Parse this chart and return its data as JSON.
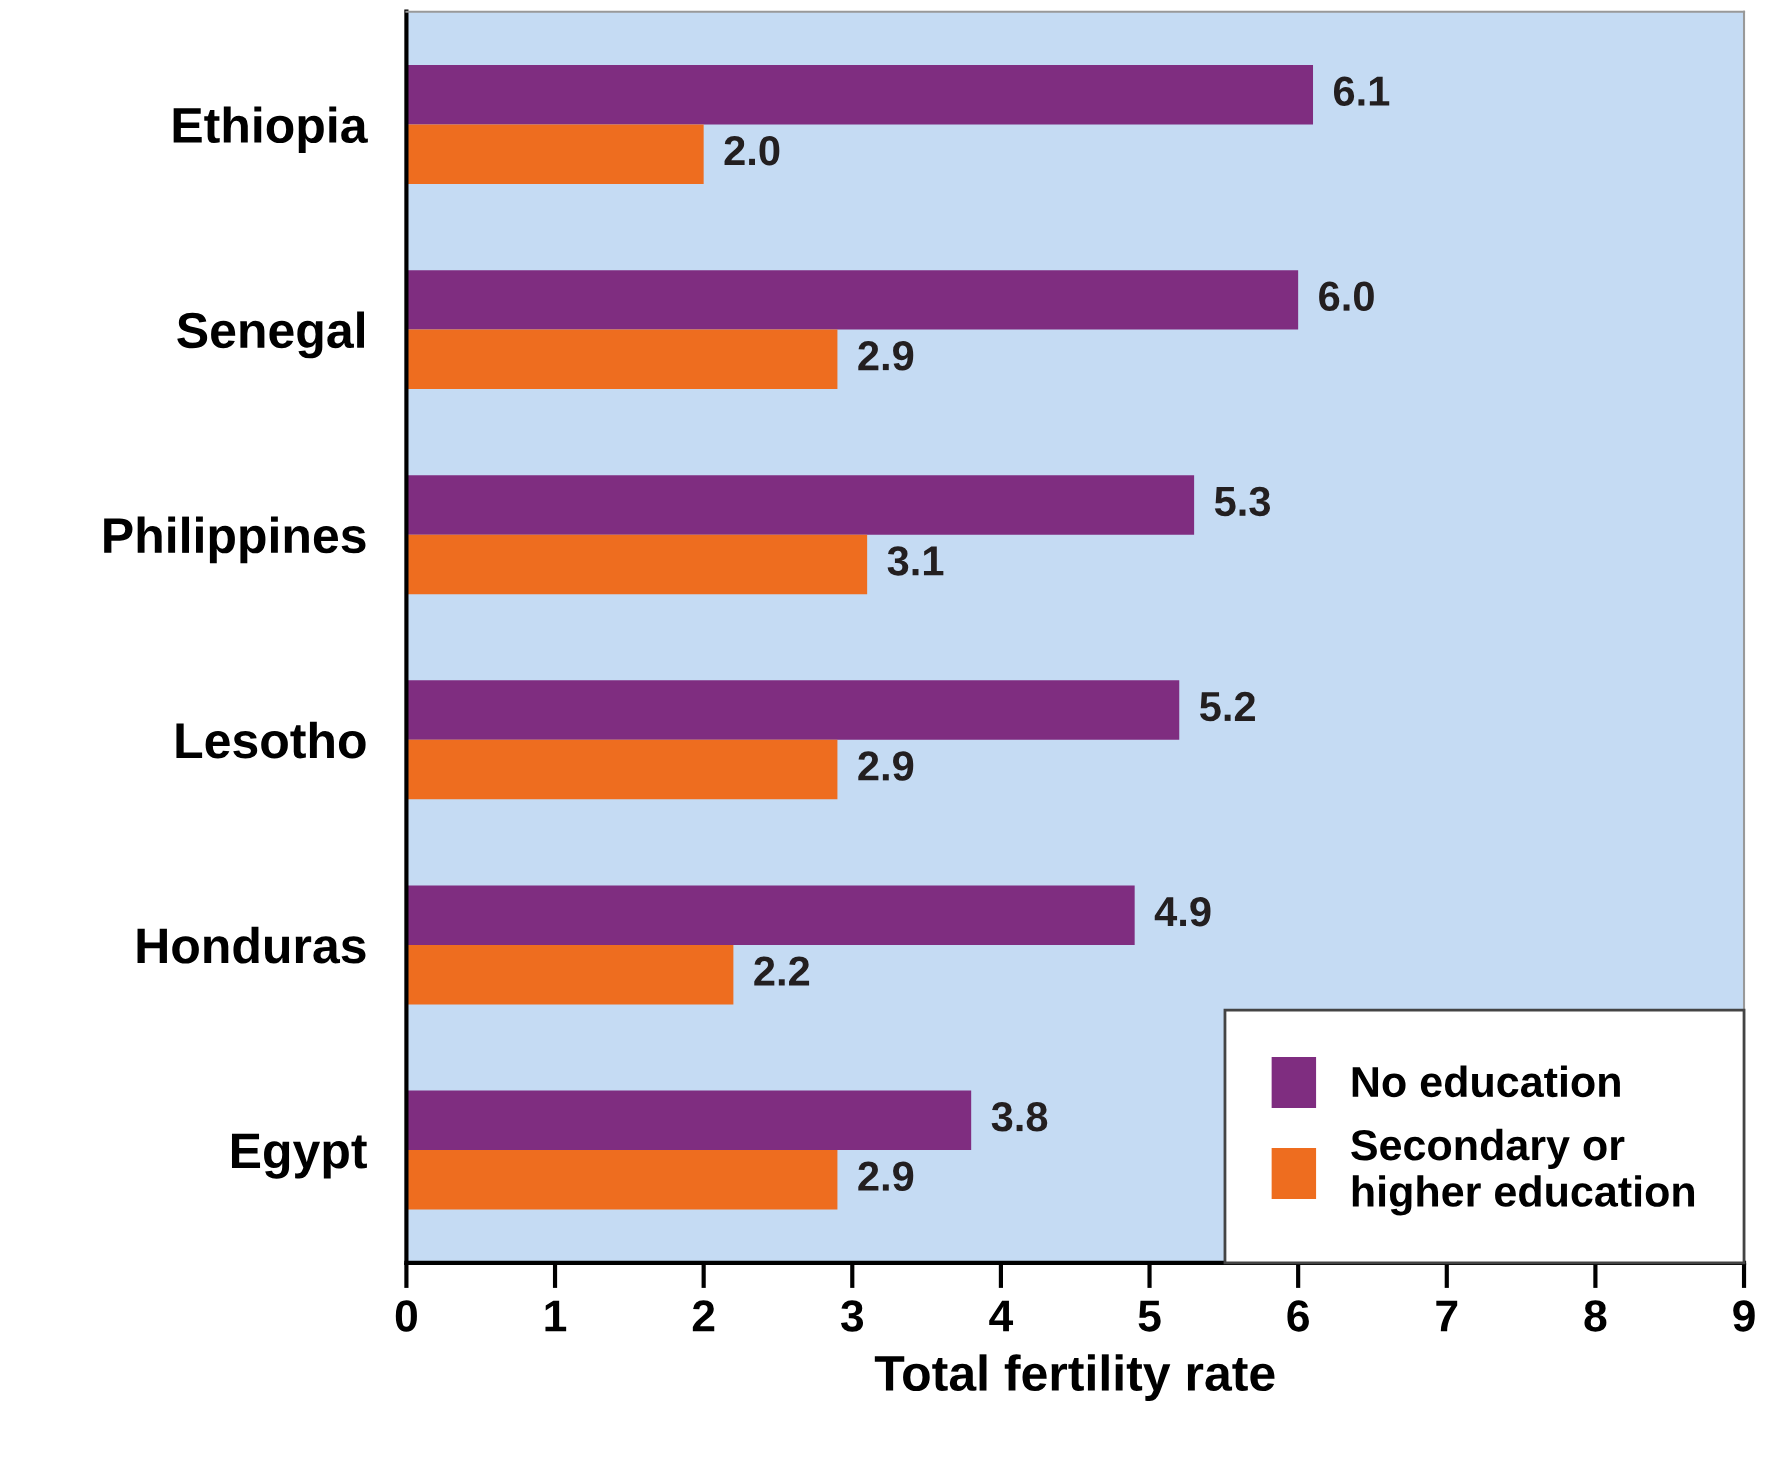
{
  "chart_data": {
    "type": "bar",
    "orientation": "horizontal",
    "xlabel": "Total fertility rate",
    "categories": [
      "Ethiopia",
      "Senegal",
      "Philippines",
      "Lesotho",
      "Honduras",
      "Egypt"
    ],
    "series": [
      {
        "name": "No education",
        "color": "#7f2d80",
        "values": [
          6.1,
          6.0,
          5.3,
          5.2,
          4.9,
          3.8
        ],
        "value_labels": [
          "6.1",
          "6.0",
          "5.3",
          "5.2",
          "4.9",
          "3.8"
        ]
      },
      {
        "name": "Secondary or\nhigher education",
        "color": "#ee6d1f",
        "values": [
          2.0,
          2.9,
          3.1,
          2.9,
          2.2,
          2.9
        ],
        "value_labels": [
          "2.0",
          "2.9",
          "3.1",
          "2.9",
          "2.2",
          "2.9"
        ]
      }
    ],
    "xlim": [
      0,
      9
    ],
    "xticks": [
      0,
      1,
      2,
      3,
      4,
      5,
      6,
      7,
      8,
      9
    ],
    "legend": "bottom right",
    "grid": false
  }
}
